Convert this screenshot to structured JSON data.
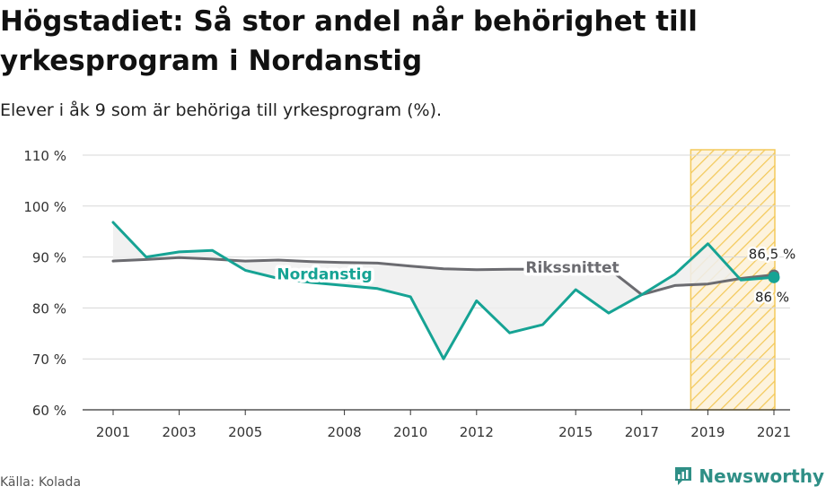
{
  "title": "Högstadiet: Så stor andel når behörighet till yrkesprogram i Nordanstig",
  "subtitle": "Elever i åk 9 som är behöriga till yrkesprogram (%).",
  "source": "Källa: Kolada",
  "brand": "Newsworthy",
  "colors": {
    "nordanstig": "#16a394",
    "riket": "#6b6b70",
    "highlight": "#f3c95a",
    "grid": "#d7d7d7",
    "fill": "#eeeeee"
  },
  "chart_data": {
    "type": "line",
    "x": [
      2001,
      2002,
      2003,
      2004,
      2005,
      2006,
      2007,
      2008,
      2009,
      2010,
      2011,
      2012,
      2013,
      2014,
      2015,
      2016,
      2017,
      2018,
      2019,
      2020,
      2021
    ],
    "series": [
      {
        "name": "Nordanstig",
        "values": [
          96.8,
          90.0,
          91.0,
          91.3,
          87.4,
          85.8,
          85.0,
          84.4,
          83.8,
          82.2,
          70.0,
          81.4,
          75.1,
          76.7,
          83.6,
          79.0,
          82.6,
          86.6,
          92.6,
          85.5,
          86.0
        ]
      },
      {
        "name": "Rikssnittet",
        "values": [
          89.2,
          89.5,
          89.9,
          89.6,
          89.2,
          89.4,
          89.1,
          88.9,
          88.8,
          88.2,
          87.7,
          87.5,
          87.6,
          87.6,
          87.7,
          87.7,
          82.6,
          84.4,
          84.7,
          85.8,
          86.5
        ]
      }
    ],
    "series_labels": [
      "Nordanstig",
      "Rikssnittet"
    ],
    "end_labels": [
      "86,5 %",
      "86 %"
    ],
    "y_ticks": [
      60,
      70,
      80,
      90,
      100,
      110
    ],
    "y_tick_labels": [
      "60 %",
      "70 %",
      "80 %",
      "90 %",
      "100 %",
      "110 %"
    ],
    "x_ticks": [
      2001,
      2003,
      2005,
      2008,
      2010,
      2012,
      2015,
      2017,
      2019,
      2021
    ],
    "x_tick_labels": [
      "2001",
      "2003",
      "2005",
      "2008",
      "2010",
      "2012",
      "2015",
      "2017",
      "2019",
      "2021"
    ],
    "ylim": [
      60,
      110
    ],
    "xlim": [
      2001,
      2021
    ],
    "highlight_range": [
      2019,
      2021
    ],
    "grid": true,
    "xlabel": "",
    "ylabel": ""
  }
}
